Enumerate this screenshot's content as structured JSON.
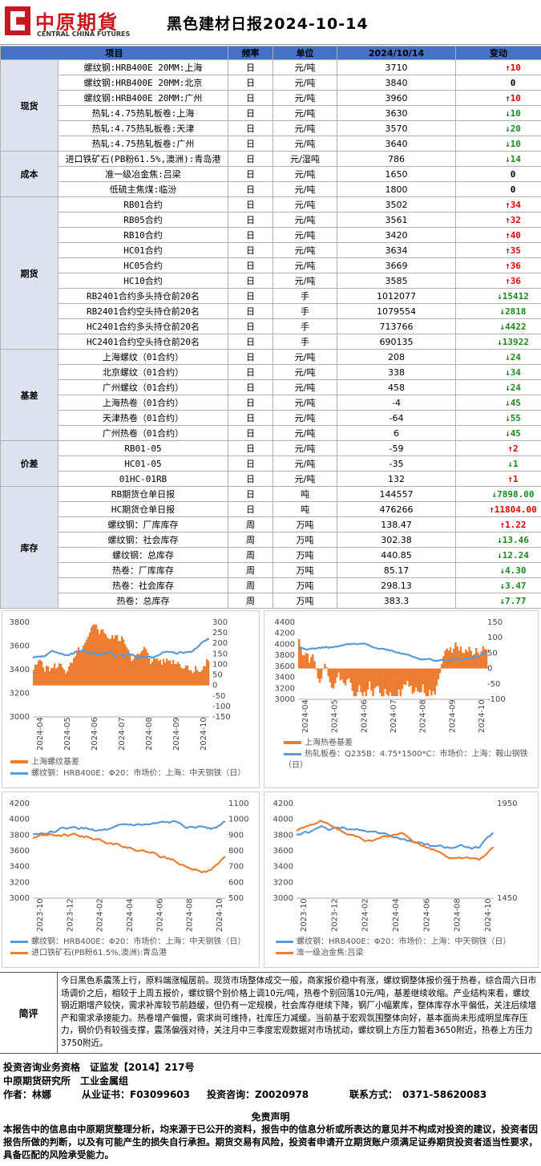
{
  "header": {
    "logo_cn": "中原期貨",
    "logo_en": "CENTRAL CHINA FUTURES",
    "title": "黑色建材日报2024-10-14"
  },
  "table": {
    "columns": [
      "项目",
      "",
      "频率",
      "单位",
      "2024/10/14",
      "变动"
    ],
    "groups": [
      {
        "name": "现货",
        "rows": [
          [
            "螺纹钢:HRB400E 20MM:上海",
            "日",
            "元/吨",
            "3710",
            "up",
            "10"
          ],
          [
            "螺纹钢:HRB400E 20MM:北京",
            "日",
            "元/吨",
            "3840",
            "none",
            "0"
          ],
          [
            "螺纹钢:HRB400E 20MM:广州",
            "日",
            "元/吨",
            "3960",
            "up",
            "10"
          ],
          [
            "热轧:4.75热轧板卷:上海",
            "日",
            "元/吨",
            "3630",
            "down",
            "10"
          ],
          [
            "热轧:4.75热轧板卷:天津",
            "日",
            "元/吨",
            "3570",
            "down",
            "20"
          ],
          [
            "热轧:4.75热轧板卷:广州",
            "日",
            "元/吨",
            "3640",
            "down",
            "10"
          ]
        ]
      },
      {
        "name": "成本",
        "rows": [
          [
            "进口铁矿石(PB粉61.5%,澳洲):青岛港",
            "日",
            "元/湿吨",
            "786",
            "down",
            "14"
          ],
          [
            "准一级冶金焦:吕梁",
            "日",
            "元/吨",
            "1650",
            "none",
            "0"
          ],
          [
            "低硫主焦煤:临汾",
            "日",
            "元/吨",
            "1800",
            "none",
            "0"
          ]
        ]
      },
      {
        "name": "期货",
        "rows": [
          [
            "RB01合约",
            "日",
            "元/吨",
            "3502",
            "up",
            "34"
          ],
          [
            "RB05合约",
            "日",
            "元/吨",
            "3561",
            "up",
            "32"
          ],
          [
            "RB10合约",
            "日",
            "元/吨",
            "3420",
            "up",
            "40"
          ],
          [
            "HC01合约",
            "日",
            "元/吨",
            "3634",
            "up",
            "35"
          ],
          [
            "HC05合约",
            "日",
            "元/吨",
            "3669",
            "up",
            "36"
          ],
          [
            "HC10合约",
            "日",
            "元/吨",
            "3585",
            "up",
            "36"
          ],
          [
            "RB2401合约多头持仓前20名",
            "日",
            "手",
            "1012077",
            "down",
            "15412"
          ],
          [
            "RB2401合约空头持仓前20名",
            "日",
            "手",
            "1079554",
            "down",
            "2818"
          ],
          [
            "HC2401合约多头持仓前20名",
            "日",
            "手",
            "713766",
            "down",
            "4422"
          ],
          [
            "HC2401合约空头持仓前20名",
            "日",
            "手",
            "690135",
            "down",
            "13922"
          ]
        ]
      },
      {
        "name": "基差",
        "rows": [
          [
            "上海螺纹（01合约）",
            "日",
            "元/吨",
            "208",
            "down",
            "24"
          ],
          [
            "北京螺纹（01合约）",
            "日",
            "元/吨",
            "338",
            "down",
            "34"
          ],
          [
            "广州螺纹（01合约）",
            "日",
            "元/吨",
            "458",
            "down",
            "24"
          ],
          [
            "上海热卷（01合约）",
            "日",
            "元/吨",
            "-4",
            "down",
            "45"
          ],
          [
            "天津热卷（01合约）",
            "日",
            "元/吨",
            "-64",
            "down",
            "55"
          ],
          [
            "广州热卷（01合约）",
            "日",
            "元/吨",
            "6",
            "down",
            "45"
          ]
        ]
      },
      {
        "name": "价差",
        "rows": [
          [
            "RB01-05",
            "日",
            "元/吨",
            "-59",
            "up",
            "2"
          ],
          [
            "HC01-05",
            "日",
            "元/吨",
            "-35",
            "down",
            "1"
          ],
          [
            "01HC-01RB",
            "日",
            "元/吨",
            "132",
            "up",
            "1"
          ]
        ]
      },
      {
        "name": "库存",
        "rows": [
          [
            "RB期货仓单日报",
            "日",
            "吨",
            "144557",
            "down",
            "7898.00"
          ],
          [
            "HC期货仓单日报",
            "日",
            "吨",
            "476266",
            "up",
            "11804.00"
          ],
          [
            "螺纹钢：厂库库存",
            "周",
            "万吨",
            "138.47",
            "up",
            "1.22"
          ],
          [
            "螺纹钢：社会库存",
            "周",
            "万吨",
            "302.38",
            "down",
            "13.46"
          ],
          [
            "螺纹钢：总库存",
            "周",
            "万吨",
            "440.85",
            "down",
            "12.24"
          ],
          [
            "热卷：厂库库存",
            "周",
            "万吨",
            "85.17",
            "down",
            "4.30"
          ],
          [
            "热卷：社会库存",
            "周",
            "万吨",
            "298.13",
            "down",
            "3.47"
          ],
          [
            "热卷：总库存",
            "周",
            "万吨",
            "383.3",
            "down",
            "7.77"
          ]
        ]
      }
    ]
  },
  "chart_data": [
    {
      "type": "line+bar",
      "x_ticks": [
        "2024-04",
        "2024-05",
        "2024-06",
        "2024-07",
        "2024-08",
        "2024-09",
        "2024-10"
      ],
      "ylim_left": [
        3000,
        3800
      ],
      "ylim_right": [
        -150,
        300
      ],
      "left_ticks": [
        "3800",
        "3600",
        "3400",
        "3200",
        "3000"
      ],
      "right_ticks": [
        "300",
        "250",
        "200",
        "150",
        "100",
        "50",
        "0",
        "-50",
        "-100",
        "-150"
      ],
      "series": [
        {
          "name": "上海螺纹基差",
          "kind": "bar",
          "color": "#ed7d31"
        },
        {
          "name": "螺纹钢：HRB400E：Φ20：市场价：上海：中天钢铁（日）",
          "kind": "line",
          "color": "#5b9bd5"
        }
      ]
    },
    {
      "type": "line+bar",
      "x_ticks": [
        "2024-04",
        "2024-05",
        "2024-06",
        "2024-07",
        "2024-08",
        "2024-09",
        "2024-10"
      ],
      "ylim_left": [
        3000,
        4400
      ],
      "ylim_right": [
        -100,
        150
      ],
      "left_ticks": [
        "4400",
        "4200",
        "4000",
        "3800",
        "3600",
        "3400",
        "3200",
        "3000"
      ],
      "right_ticks": [
        "150",
        "100",
        "50",
        "0",
        "-50",
        "-100"
      ],
      "series": [
        {
          "name": "上海热卷基差",
          "kind": "bar",
          "color": "#ed7d31"
        },
        {
          "name": "热轧板卷：Q235B：4.75*1500*C：市场价：上海：鞍山钢铁（日）",
          "kind": "line",
          "color": "#5b9bd5"
        }
      ]
    },
    {
      "type": "line",
      "x_ticks": [
        "2023-10",
        "2023-12",
        "2024-02",
        "2024-04",
        "2024-06",
        "2024-08",
        "2024-10"
      ],
      "ylim_left": [
        3000,
        4200
      ],
      "ylim_right": [
        500,
        1100
      ],
      "left_ticks": [
        "4200",
        "4000",
        "3800",
        "3600",
        "3400",
        "3200",
        "3000"
      ],
      "right_ticks": [
        "1100",
        "1000",
        "900",
        "800",
        "700",
        "600",
        "500"
      ],
      "series": [
        {
          "name": "螺纹钢：HRB400E：Φ20：市场价：上海：中天钢铁（日）",
          "kind": "line",
          "color": "#5b9bd5"
        },
        {
          "name": "进口铁矿石(PB粉61.5%,澳洲):青岛港",
          "kind": "line",
          "color": "#ed7d31"
        }
      ]
    },
    {
      "type": "line",
      "x_ticks": [
        "2023-10",
        "2023-12",
        "2024-02",
        "2024-04",
        "2024-06",
        "2024-08",
        "2024-10"
      ],
      "ylim_left": [
        3000,
        4200
      ],
      "ylim_right": [
        1450,
        2450
      ],
      "left_ticks": [
        "4200",
        "4000",
        "3800",
        "3600",
        "3400",
        "3200",
        "3000"
      ],
      "right_ticks": [
        "1950",
        "1450"
      ],
      "series": [
        {
          "name": "螺纹钢：HRB400E：Φ20：市场价：上海：中天钢铁（日）",
          "kind": "line",
          "color": "#5b9bd5"
        },
        {
          "name": "准一级冶金焦:吕梁",
          "kind": "line",
          "color": "#ed7d31"
        }
      ]
    }
  ],
  "comment": {
    "label": "简评",
    "text": "今日黑色系震荡上行，原料端涨幅居前。现货市场整体成交一般，商家报价稳中有涨，螺纹钢整体报价强于热卷，综合周六日市场调价之后，相较于上周五报价，螺纹钢个别价格上调10元/吨，热卷个别回落10元/吨，基差继续收缩。产业结构来看，螺纹钢近期增产较快，需求补库较节前趋缓，但仍有一定规模，社会库存继续下降，钢厂小幅累库，整体库存水平偏低，关注后续增产和需求承接能力。热卷增产偏慢，需求尚可维持，社库压力减缓。当前基于宏观氛围整体向好，基本面尚未形成明显库存压力，钢价仍有较强支撑，震荡偏强对待，关注月中三季度宏观数据对市场扰动，螺纹钢上方压力暂看3650附近，热卷上方压力3750附近。"
  },
  "footer": {
    "line1": "投资咨询业务资格　证监发【2014】217号",
    "line2": "中原期货研究所　工业金属组",
    "author": "作者：林娜",
    "cert": "从业证书：F03099603",
    "consult": "投资咨询：Z0020978",
    "contact": "联系方式：　0371-58620083"
  },
  "disclaimer": {
    "title": "免责声明",
    "text": "本报告中的信息由中原期货整理分析，均来源于已公开的资料，报告中的信息分析或所表达的意见并不构成对投资的建议，投资者因报告所做的判断，以及有可能产生的损失自行承担。期货交易有风险，投资者申请开立期货账户须满足证券期货投资者适当性要求，具备匹配的风险承受能力。"
  }
}
